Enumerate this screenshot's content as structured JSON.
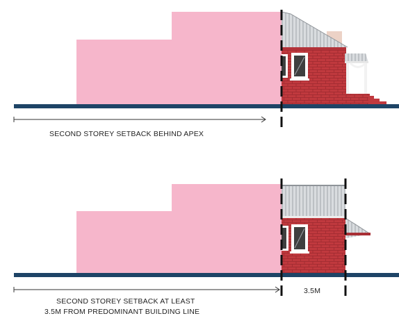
{
  "panels": [
    {
      "caption": "SECOND STOREY SETBACK BEHIND APEX"
    },
    {
      "caption_lines": [
        "SECOND STOREY SETBACK AT LEAST",
        "3.5M FROM PREDOMINANT BUILDING LINE"
      ],
      "dimension": "3.5M"
    }
  ],
  "colors": {
    "addition": "#f6b6cb",
    "brick": "#c0393e",
    "roof": "#d6d9dc",
    "ground": "#1e4466",
    "window": "#ffffff"
  }
}
